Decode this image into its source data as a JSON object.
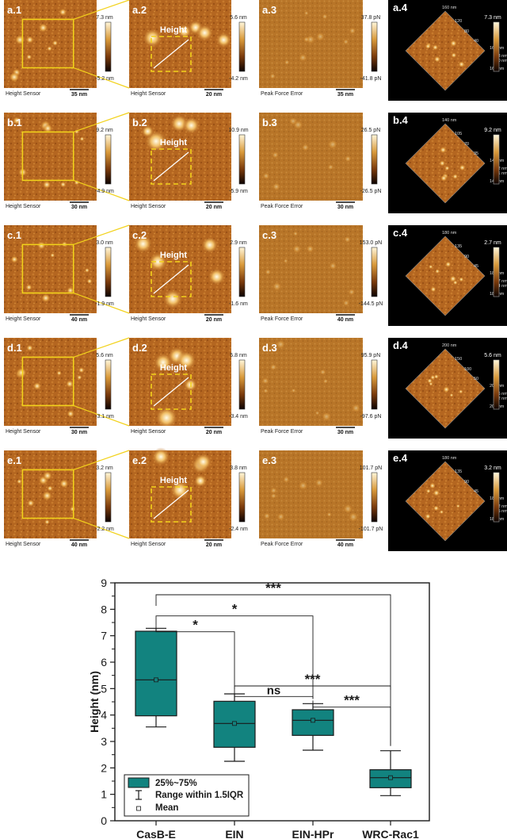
{
  "afm_figure": {
    "rows": [
      {
        "panels": [
          {
            "label": "a.1",
            "footer": "Height Sensor",
            "scale": "35 nm"
          },
          {
            "label": "a.2",
            "footer": "Height Sensor",
            "scale": "20 nm",
            "annot": "Height"
          },
          {
            "label": "a.3",
            "footer": "Peak Force Error",
            "scale": "35 nm"
          },
          {
            "label": "a.4"
          }
        ],
        "cbars": [
          {
            "top": "7.3 nm",
            "bottom": "-5.2 nm"
          },
          {
            "top": "5.6 nm",
            "bottom": "-4.2 nm"
          },
          {
            "top": "37.8 pN",
            "bottom": "-41.8 pN"
          },
          {
            "top": "7.3 nm",
            "bottom": ""
          }
        ],
        "ticks3d": [
          "160 nm",
          "120",
          "80",
          "40",
          "160 nm",
          "7.3 nm",
          "1.0 nm",
          "160 nm"
        ]
      },
      {
        "panels": [
          {
            "label": "b.1",
            "footer": "Height Sensor",
            "scale": "30 nm"
          },
          {
            "label": "b.2",
            "footer": "Height Sensor",
            "scale": "20 nm",
            "annot": "Height"
          },
          {
            "label": "b.3",
            "footer": "Peak Force Error",
            "scale": "30 nm"
          },
          {
            "label": "b.4"
          }
        ],
        "cbars": [
          {
            "top": "9.2 nm",
            "bottom": "-4.9 nm"
          },
          {
            "top": "10.9 nm",
            "bottom": "-5.9 nm"
          },
          {
            "top": "26.5 pN",
            "bottom": "-26.5 pN"
          },
          {
            "top": "9.2 nm",
            "bottom": ""
          }
        ],
        "ticks3d": [
          "140 nm",
          "105",
          "70",
          "35",
          "140 nm",
          "9.2 nm",
          "2.1 nm",
          "140 nm"
        ]
      },
      {
        "panels": [
          {
            "label": "c.1",
            "footer": "Height Sensor",
            "scale": "40 nm"
          },
          {
            "label": "c.2",
            "footer": "Height Sensor",
            "scale": "20 nm",
            "annot": "Height"
          },
          {
            "label": "c.3",
            "footer": "Peak Force Error",
            "scale": "40 nm"
          },
          {
            "label": "c.4"
          }
        ],
        "cbars": [
          {
            "top": "3.0 nm",
            "bottom": "-1.9 nm"
          },
          {
            "top": "2.9 nm",
            "bottom": "-1.6 nm"
          },
          {
            "top": "153.0 pN",
            "bottom": "-144.5 pN"
          },
          {
            "top": "2.7 nm",
            "bottom": ""
          }
        ],
        "ticks3d": [
          "180 nm",
          "135",
          "90",
          "45",
          "180 nm",
          "2.7 nm",
          "0.4 nm",
          "180 nm"
        ]
      },
      {
        "panels": [
          {
            "label": "d.1",
            "footer": "Height Sensor",
            "scale": "30 nm"
          },
          {
            "label": "d.2",
            "footer": "Height Sensor",
            "scale": "20 nm",
            "annot": "Height"
          },
          {
            "label": "d.3",
            "footer": "Peak Force Error",
            "scale": "30 nm"
          },
          {
            "label": "d.4"
          }
        ],
        "cbars": [
          {
            "top": "5.6 nm",
            "bottom": "-3.1 nm"
          },
          {
            "top": "5.8 nm",
            "bottom": "-3.4 nm"
          },
          {
            "top": "95.9 pN",
            "bottom": "-97.6 pN"
          },
          {
            "top": "5.6 nm",
            "bottom": ""
          }
        ],
        "ticks3d": [
          "200 nm",
          "150",
          "100",
          "50",
          "200 nm",
          "5.6 nm",
          "1.2 nm",
          "200 nm"
        ]
      },
      {
        "panels": [
          {
            "label": "e.1",
            "footer": "Height Sensor",
            "scale": "40 nm"
          },
          {
            "label": "e.2",
            "footer": "Height Sensor",
            "scale": "20 nm",
            "annot": "Height"
          },
          {
            "label": "e.3",
            "footer": "Peak Force Error",
            "scale": "40 nm"
          },
          {
            "label": "e.4"
          }
        ],
        "cbars": [
          {
            "top": "3.2 nm",
            "bottom": "-2.2 nm"
          },
          {
            "top": "3.8 nm",
            "bottom": "-2.4 nm"
          },
          {
            "top": "101.7 pN",
            "bottom": "-101.7 pN"
          },
          {
            "top": "3.2 nm",
            "bottom": ""
          }
        ],
        "ticks3d": [
          "180 nm",
          "135",
          "90",
          "45",
          "180 nm",
          "3.2 nm",
          "0.5 nm",
          "180 nm"
        ]
      }
    ]
  },
  "chart_data": {
    "type": "box",
    "title": "",
    "xlabel": "",
    "ylabel": "Height (nm)",
    "ylim": [
      0,
      9
    ],
    "yticks": [
      0,
      1,
      2,
      3,
      4,
      5,
      6,
      7,
      8,
      9
    ],
    "categories": [
      "CasB-E",
      "EIN",
      "EIN-HPr",
      "WRC-Rac1"
    ],
    "boxes": [
      {
        "category": "CasB-E",
        "whisker_low": 3.55,
        "q1": 3.97,
        "median": 5.33,
        "q3": 7.17,
        "whisker_high": 7.28,
        "mean": 5.33
      },
      {
        "category": "EIN",
        "whisker_low": 2.25,
        "q1": 2.78,
        "median": 3.68,
        "q3": 4.52,
        "whisker_high": 4.8,
        "mean": 3.68
      },
      {
        "category": "EIN-HPr",
        "whisker_low": 2.67,
        "q1": 3.23,
        "median": 3.8,
        "q3": 4.2,
        "whisker_high": 4.43,
        "mean": 3.8
      },
      {
        "category": "WRC-Rac1",
        "whisker_low": 0.95,
        "q1": 1.25,
        "median": 1.63,
        "q3": 1.93,
        "whisker_high": 2.65,
        "mean": 1.63
      }
    ],
    "significance": [
      {
        "from": "CasB-E",
        "to": "WRC-Rac1",
        "label": "***",
        "y": 8.55
      },
      {
        "from": "CasB-E",
        "to": "EIN-HPr",
        "label": "*",
        "y": 7.75
      },
      {
        "from": "CasB-E",
        "to": "EIN",
        "label": "*",
        "y": 7.15
      },
      {
        "from": "EIN",
        "to": "WRC-Rac1",
        "label": "***",
        "y": 5.1
      },
      {
        "from": "EIN",
        "to": "EIN-HPr",
        "label": "ns",
        "y": 4.7
      },
      {
        "from": "EIN-HPr",
        "to": "WRC-Rac1",
        "label": "***",
        "y": 4.3
      }
    ],
    "legend": {
      "position": "bottom-left",
      "entries": [
        "25%~75%",
        "Range within 1.5IQR",
        "Mean"
      ]
    },
    "colors": {
      "box_fill": "#12837f",
      "box_stroke": "#1a1a1a"
    }
  }
}
